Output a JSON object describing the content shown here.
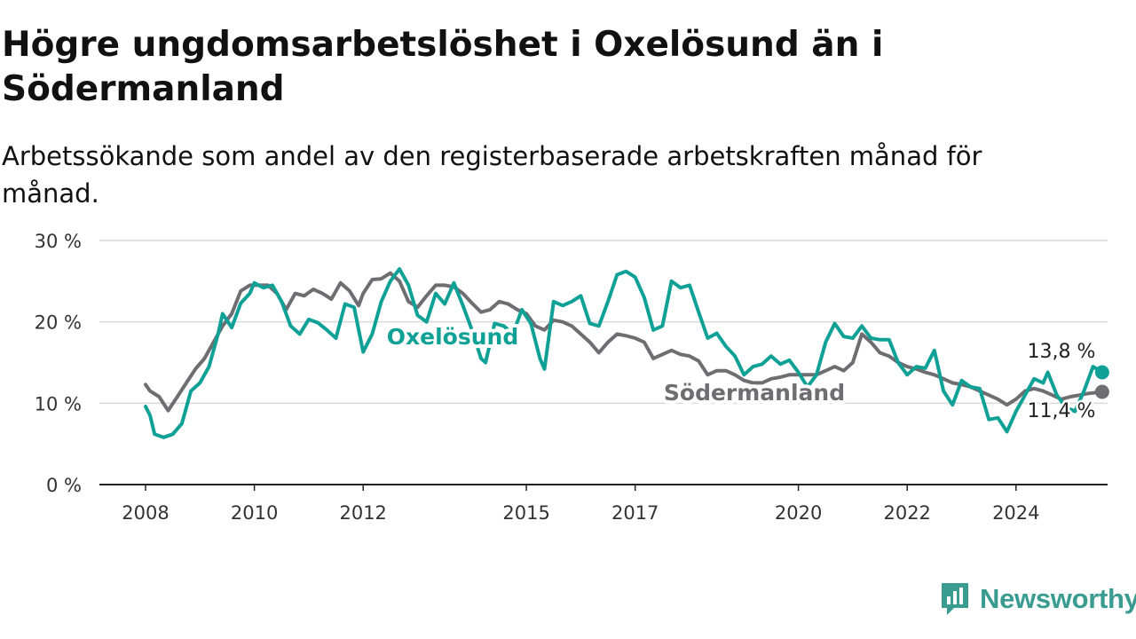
{
  "chart_data": {
    "type": "line",
    "title": "Högre ungdomsarbetslöshet i Oxelösund än i Södermanland",
    "subtitle": "Arbetssökande som andel av den registerbaserade arbetskraften månad för månad.",
    "xlabel": "",
    "ylabel": "",
    "x_ticks": [
      "2008",
      "2010",
      "2012",
      "2015",
      "2017",
      "2020",
      "2022",
      "2024"
    ],
    "y_ticks": [
      "0 %",
      "10 %",
      "20 %",
      "30 %"
    ],
    "ylim": [
      0,
      30
    ],
    "grid": true,
    "legend": "inline labels",
    "series": [
      {
        "name": "Oxelösund",
        "color": "#0fa196",
        "end_label": "13,8 %",
        "points": [
          [
            "2008-01",
            9.6
          ],
          [
            "2008-02",
            8.5
          ],
          [
            "2008-03",
            6.2
          ],
          [
            "2008-05",
            5.8
          ],
          [
            "2008-07",
            6.2
          ],
          [
            "2008-09",
            7.5
          ],
          [
            "2008-11",
            11.5
          ],
          [
            "2009-01",
            12.5
          ],
          [
            "2009-03",
            14.5
          ],
          [
            "2009-05",
            18.5
          ],
          [
            "2009-06",
            21
          ],
          [
            "2009-08",
            19.3
          ],
          [
            "2009-10",
            22.3
          ],
          [
            "2009-12",
            23.5
          ],
          [
            "2010-01",
            24.8
          ],
          [
            "2010-03",
            24.2
          ],
          [
            "2010-05",
            24.5
          ],
          [
            "2010-07",
            22.5
          ],
          [
            "2010-09",
            19.5
          ],
          [
            "2010-11",
            18.5
          ],
          [
            "2011-01",
            20.3
          ],
          [
            "2011-03",
            19.9
          ],
          [
            "2011-05",
            19
          ],
          [
            "2011-07",
            18
          ],
          [
            "2011-09",
            22.2
          ],
          [
            "2011-11",
            21.8
          ],
          [
            "2012-01",
            16.3
          ],
          [
            "2012-03",
            18.5
          ],
          [
            "2012-05",
            22.5
          ],
          [
            "2012-07",
            25
          ],
          [
            "2012-09",
            26.5
          ],
          [
            "2012-11",
            24.5
          ],
          [
            "2013-01",
            20.8
          ],
          [
            "2013-03",
            20
          ],
          [
            "2013-05",
            23.5
          ],
          [
            "2013-07",
            22.2
          ],
          [
            "2013-09",
            24.8
          ],
          [
            "2013-11",
            22
          ],
          [
            "2014-01",
            19
          ],
          [
            "2014-03",
            15.5
          ],
          [
            "2014-04",
            15
          ],
          [
            "2014-06",
            19.8
          ],
          [
            "2014-08",
            19.5
          ],
          [
            "2014-10",
            18.5
          ],
          [
            "2014-12",
            21.5
          ],
          [
            "2015-02",
            19.8
          ],
          [
            "2015-04",
            15.5
          ],
          [
            "2015-05",
            14.2
          ],
          [
            "2015-07",
            22.5
          ],
          [
            "2015-09",
            22
          ],
          [
            "2015-11",
            22.5
          ],
          [
            "2016-01",
            23.2
          ],
          [
            "2016-03",
            19.8
          ],
          [
            "2016-05",
            19.5
          ],
          [
            "2016-07",
            22.5
          ],
          [
            "2016-09",
            25.8
          ],
          [
            "2016-11",
            26.2
          ],
          [
            "2017-01",
            25.5
          ],
          [
            "2017-03",
            23
          ],
          [
            "2017-05",
            19
          ],
          [
            "2017-07",
            19.5
          ],
          [
            "2017-09",
            25
          ],
          [
            "2017-11",
            24.2
          ],
          [
            "2018-01",
            24.5
          ],
          [
            "2018-03",
            21.2
          ],
          [
            "2018-05",
            18
          ],
          [
            "2018-07",
            18.6
          ],
          [
            "2018-09",
            17
          ],
          [
            "2018-11",
            15.8
          ],
          [
            "2019-01",
            13.5
          ],
          [
            "2019-03",
            14.5
          ],
          [
            "2019-05",
            14.8
          ],
          [
            "2019-07",
            15.8
          ],
          [
            "2019-09",
            14.8
          ],
          [
            "2019-11",
            15.3
          ],
          [
            "2020-01",
            13.8
          ],
          [
            "2020-03",
            12
          ],
          [
            "2020-05",
            13.5
          ],
          [
            "2020-07",
            17.5
          ],
          [
            "2020-09",
            19.8
          ],
          [
            "2020-11",
            18.2
          ],
          [
            "2021-01",
            18
          ],
          [
            "2021-03",
            19.5
          ],
          [
            "2021-05",
            18
          ],
          [
            "2021-07",
            17.8
          ],
          [
            "2021-09",
            17.8
          ],
          [
            "2021-11",
            15
          ],
          [
            "2022-01",
            13.5
          ],
          [
            "2022-03",
            14.5
          ],
          [
            "2022-05",
            14.3
          ],
          [
            "2022-07",
            16.5
          ],
          [
            "2022-09",
            11.5
          ],
          [
            "2022-11",
            9.8
          ],
          [
            "2023-01",
            12.8
          ],
          [
            "2023-03",
            12
          ],
          [
            "2023-05",
            11.8
          ],
          [
            "2023-07",
            8
          ],
          [
            "2023-09",
            8.2
          ],
          [
            "2023-11",
            6.5
          ],
          [
            "2024-01",
            9
          ],
          [
            "2024-03",
            11
          ],
          [
            "2024-05",
            13
          ],
          [
            "2024-07",
            12.5
          ],
          [
            "2024-08",
            13.8
          ],
          [
            "2024-10",
            11
          ],
          [
            "2024-12",
            9.5
          ],
          [
            "2025-02",
            9
          ],
          [
            "2025-04",
            11.5
          ],
          [
            "2025-06",
            14.5
          ],
          [
            "2025-08",
            13.8
          ]
        ]
      },
      {
        "name": "Södermanland",
        "color": "#6e6d72",
        "end_label": "11,4 %",
        "points": [
          [
            "2008-01",
            12.3
          ],
          [
            "2008-02",
            11.5
          ],
          [
            "2008-04",
            10.8
          ],
          [
            "2008-06",
            9.1
          ],
          [
            "2008-08",
            10.8
          ],
          [
            "2008-10",
            12.5
          ],
          [
            "2008-12",
            14.2
          ],
          [
            "2009-02",
            15.5
          ],
          [
            "2009-04",
            17.5
          ],
          [
            "2009-06",
            19.5
          ],
          [
            "2009-08",
            21
          ],
          [
            "2009-10",
            23.8
          ],
          [
            "2009-12",
            24.5
          ],
          [
            "2010-02",
            24.5
          ],
          [
            "2010-04",
            24.5
          ],
          [
            "2010-06",
            23.5
          ],
          [
            "2010-08",
            21.5
          ],
          [
            "2010-10",
            23.5
          ],
          [
            "2010-12",
            23.2
          ],
          [
            "2011-02",
            24
          ],
          [
            "2011-04",
            23.5
          ],
          [
            "2011-06",
            22.8
          ],
          [
            "2011-08",
            24.8
          ],
          [
            "2011-10",
            23.8
          ],
          [
            "2011-12",
            22
          ],
          [
            "2012-01",
            23.5
          ],
          [
            "2012-03",
            25.2
          ],
          [
            "2012-05",
            25.3
          ],
          [
            "2012-07",
            26
          ],
          [
            "2012-09",
            25
          ],
          [
            "2012-11",
            22.5
          ],
          [
            "2013-01",
            21.8
          ],
          [
            "2013-03",
            23.2
          ],
          [
            "2013-05",
            24.5
          ],
          [
            "2013-07",
            24.5
          ],
          [
            "2013-09",
            24.3
          ],
          [
            "2013-11",
            23.5
          ],
          [
            "2014-01",
            22.3
          ],
          [
            "2014-03",
            21.2
          ],
          [
            "2014-05",
            21.5
          ],
          [
            "2014-07",
            22.5
          ],
          [
            "2014-09",
            22.2
          ],
          [
            "2014-11",
            21.5
          ],
          [
            "2015-01",
            21
          ],
          [
            "2015-03",
            19.5
          ],
          [
            "2015-05",
            19
          ],
          [
            "2015-07",
            20.2
          ],
          [
            "2015-09",
            20
          ],
          [
            "2015-11",
            19.5
          ],
          [
            "2016-01",
            18.5
          ],
          [
            "2016-03",
            17.5
          ],
          [
            "2016-05",
            16.2
          ],
          [
            "2016-07",
            17.5
          ],
          [
            "2016-09",
            18.5
          ],
          [
            "2016-11",
            18.3
          ],
          [
            "2017-01",
            18
          ],
          [
            "2017-03",
            17.5
          ],
          [
            "2017-05",
            15.5
          ],
          [
            "2017-07",
            16
          ],
          [
            "2017-09",
            16.5
          ],
          [
            "2017-11",
            16
          ],
          [
            "2018-01",
            15.8
          ],
          [
            "2018-03",
            15.2
          ],
          [
            "2018-05",
            13.5
          ],
          [
            "2018-07",
            14
          ],
          [
            "2018-09",
            14
          ],
          [
            "2018-11",
            13.5
          ],
          [
            "2019-01",
            12.8
          ],
          [
            "2019-03",
            12.5
          ],
          [
            "2019-05",
            12.5
          ],
          [
            "2019-07",
            13
          ],
          [
            "2019-09",
            13.2
          ],
          [
            "2019-11",
            13.5
          ],
          [
            "2020-01",
            13.5
          ],
          [
            "2020-03",
            13.5
          ],
          [
            "2020-05",
            13.5
          ],
          [
            "2020-07",
            14
          ],
          [
            "2020-09",
            14.5
          ],
          [
            "2020-11",
            14
          ],
          [
            "2021-01",
            15
          ],
          [
            "2021-03",
            18.5
          ],
          [
            "2021-05",
            17.5
          ],
          [
            "2021-07",
            16.2
          ],
          [
            "2021-09",
            15.8
          ],
          [
            "2021-11",
            15
          ],
          [
            "2022-01",
            14.5
          ],
          [
            "2022-03",
            14.2
          ],
          [
            "2022-05",
            13.8
          ],
          [
            "2022-07",
            13.5
          ],
          [
            "2022-09",
            13
          ],
          [
            "2022-11",
            12.5
          ],
          [
            "2023-01",
            12.3
          ],
          [
            "2023-03",
            12
          ],
          [
            "2023-05",
            11.5
          ],
          [
            "2023-07",
            11
          ],
          [
            "2023-09",
            10.5
          ],
          [
            "2023-11",
            9.8
          ],
          [
            "2024-01",
            10.5
          ],
          [
            "2024-03",
            11.5
          ],
          [
            "2024-05",
            11.8
          ],
          [
            "2024-07",
            11.5
          ],
          [
            "2024-09",
            11
          ],
          [
            "2024-11",
            10.5
          ],
          [
            "2025-01",
            10.8
          ],
          [
            "2025-03",
            11
          ],
          [
            "2025-05",
            11.2
          ],
          [
            "2025-08",
            11.4
          ]
        ]
      }
    ]
  },
  "brand": {
    "name": "Newsworthy",
    "color": "#3a9c91",
    "icon": "newsworthy-logo-icon"
  }
}
